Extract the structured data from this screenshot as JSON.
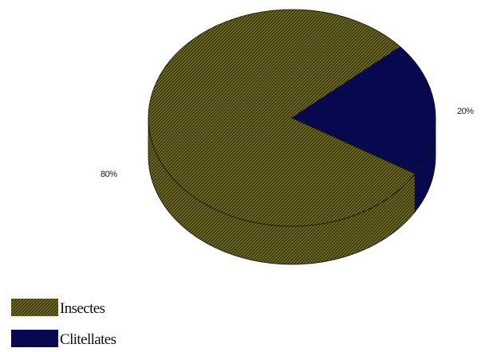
{
  "chart_data": {
    "type": "pie",
    "three_d": true,
    "categories": [
      "Insectes",
      "Clitellates"
    ],
    "values": [
      80,
      20
    ],
    "value_labels": [
      "80%",
      "20%"
    ],
    "colors": [
      "#6e6a1e",
      "#0b0b5c"
    ],
    "pattern": "diagonal-hatch",
    "legend_position": "bottom-left",
    "title": ""
  }
}
